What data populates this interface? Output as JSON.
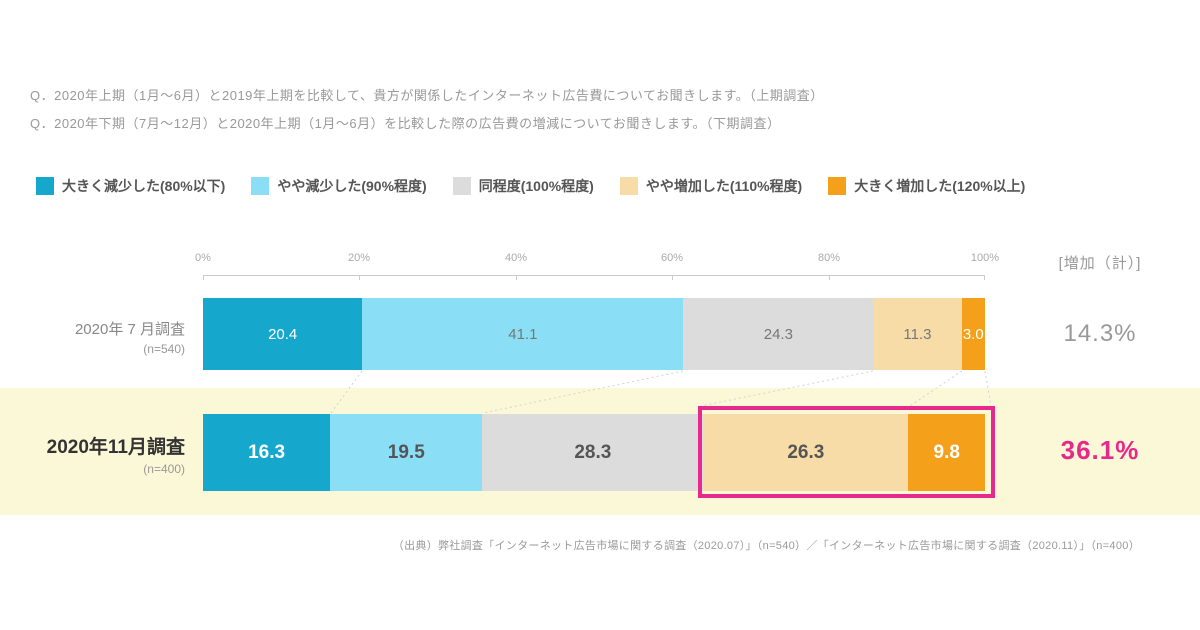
{
  "questions": [
    "Q．2020年上期（1月～6月）と2019年上期を比較して、貴方が関係したインターネット広告費についてお聞きします。（上期調査）",
    "Q．2020年下期（7月～12月）と2020年上期（1月～6月）を比較した際の広告費の増減についてお聞きします。（下期調査）"
  ],
  "legend": [
    {
      "label": "大きく減少した(80%以下)",
      "color": "#16a8cc"
    },
    {
      "label": "やや減少した(90%程度)",
      "color": "#8adef5"
    },
    {
      "label": "同程度(100%程度)",
      "color": "#dcdcdc"
    },
    {
      "label": "やや増加した(110%程度)",
      "color": "#f7dca8"
    },
    {
      "label": "大きく増加した(120%以上)",
      "color": "#f5a01b"
    }
  ],
  "axis": {
    "ticks": [
      "0%",
      "20%",
      "40%",
      "60%",
      "80%",
      "100%"
    ],
    "increase_header": "[増加（計）]"
  },
  "chart_data": {
    "type": "bar",
    "stacked": true,
    "orientation": "horizontal",
    "xlim": [
      0,
      100
    ],
    "x_tick_percents": [
      0,
      20,
      40,
      60,
      80,
      100
    ],
    "series_labels": [
      "大きく減少した(80%以下)",
      "やや減少した(90%程度)",
      "同程度(100%程度)",
      "やや増加した(110%程度)",
      "大きく増加した(120%以上)"
    ],
    "rows": [
      {
        "label": "2020年 7 月調査",
        "n_label": "(n=540)",
        "values": [
          20.4,
          41.1,
          24.3,
          11.3,
          3.0
        ],
        "value_labels": [
          "20.4",
          "41.1",
          "24.3",
          "11.3",
          "3.0"
        ],
        "increase_total": "14.3%"
      },
      {
        "label": "2020年11月調査",
        "n_label": "(n=400)",
        "values": [
          16.3,
          19.5,
          28.3,
          26.3,
          9.8
        ],
        "value_labels": [
          "16.3",
          "19.5",
          "28.3",
          "26.3",
          "9.8"
        ],
        "increase_total": "36.1%"
      }
    ],
    "highlight": {
      "row": "2020年11月調査",
      "segments": [
        "やや増加した(110%程度)",
        "大きく増加した(120%以上)"
      ],
      "border_color": "#e8298c",
      "band_color": "#fbf8d7"
    }
  },
  "source": "（出典）弊社調査「インターネット広告市場に関する調査（2020.07）」（n=540）／「インターネット広告市場に関する調査（2020.11）」（n=400）"
}
